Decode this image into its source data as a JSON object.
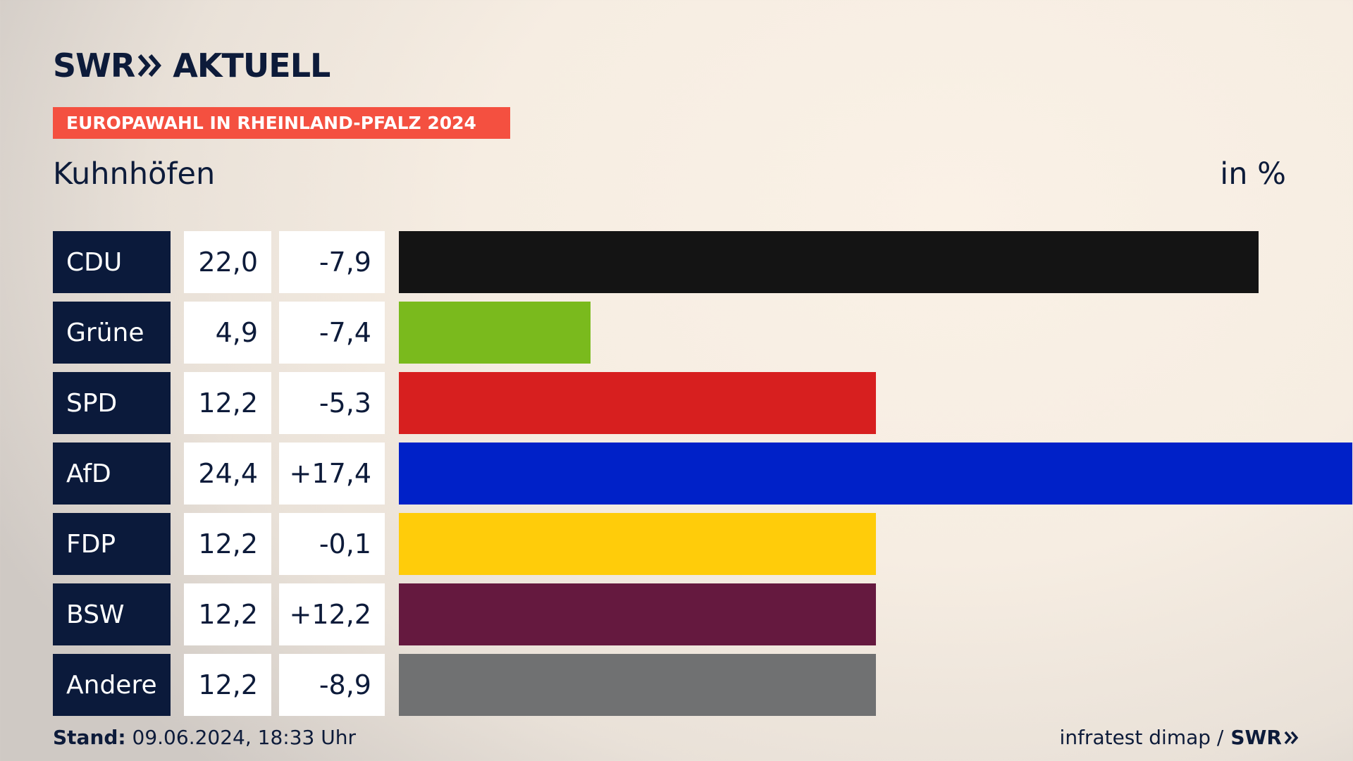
{
  "logo": {
    "left": "SWR",
    "right": "AKTUELL"
  },
  "banner": "EUROPAWAHL IN RHEINLAND-PFALZ 2024",
  "subtitle": "Kuhnhöfen",
  "unit": "in %",
  "footer": {
    "stand_label": "Stand:",
    "stand_value": "09.06.2024, 18:33 Uhr",
    "source": "infratest dimap /",
    "brand": "SWR"
  },
  "chart_data": {
    "type": "bar",
    "orientation": "horizontal",
    "categories": [
      "CDU",
      "Grüne",
      "SPD",
      "AfD",
      "FDP",
      "BSW",
      "Andere"
    ],
    "values": [
      22.0,
      4.9,
      12.2,
      24.4,
      12.2,
      12.2,
      12.2
    ],
    "value_labels": [
      "22,0",
      "4,9",
      "12,2",
      "24,4",
      "12,2",
      "12,2",
      "12,2"
    ],
    "diff_labels": [
      "-7,9",
      "-7,4",
      "-5,3",
      "+17,4",
      "-0,1",
      "+12,2",
      "-8,9"
    ],
    "diffs": [
      -7.9,
      -7.4,
      -5.3,
      17.4,
      -0.1,
      12.2,
      -8.9
    ],
    "colors": [
      "#141414",
      "#7aba1d",
      "#d71f1f",
      "#0021c8",
      "#ffcc0a",
      "#65193f",
      "#707172"
    ],
    "xlim": [
      0,
      24.4
    ]
  }
}
